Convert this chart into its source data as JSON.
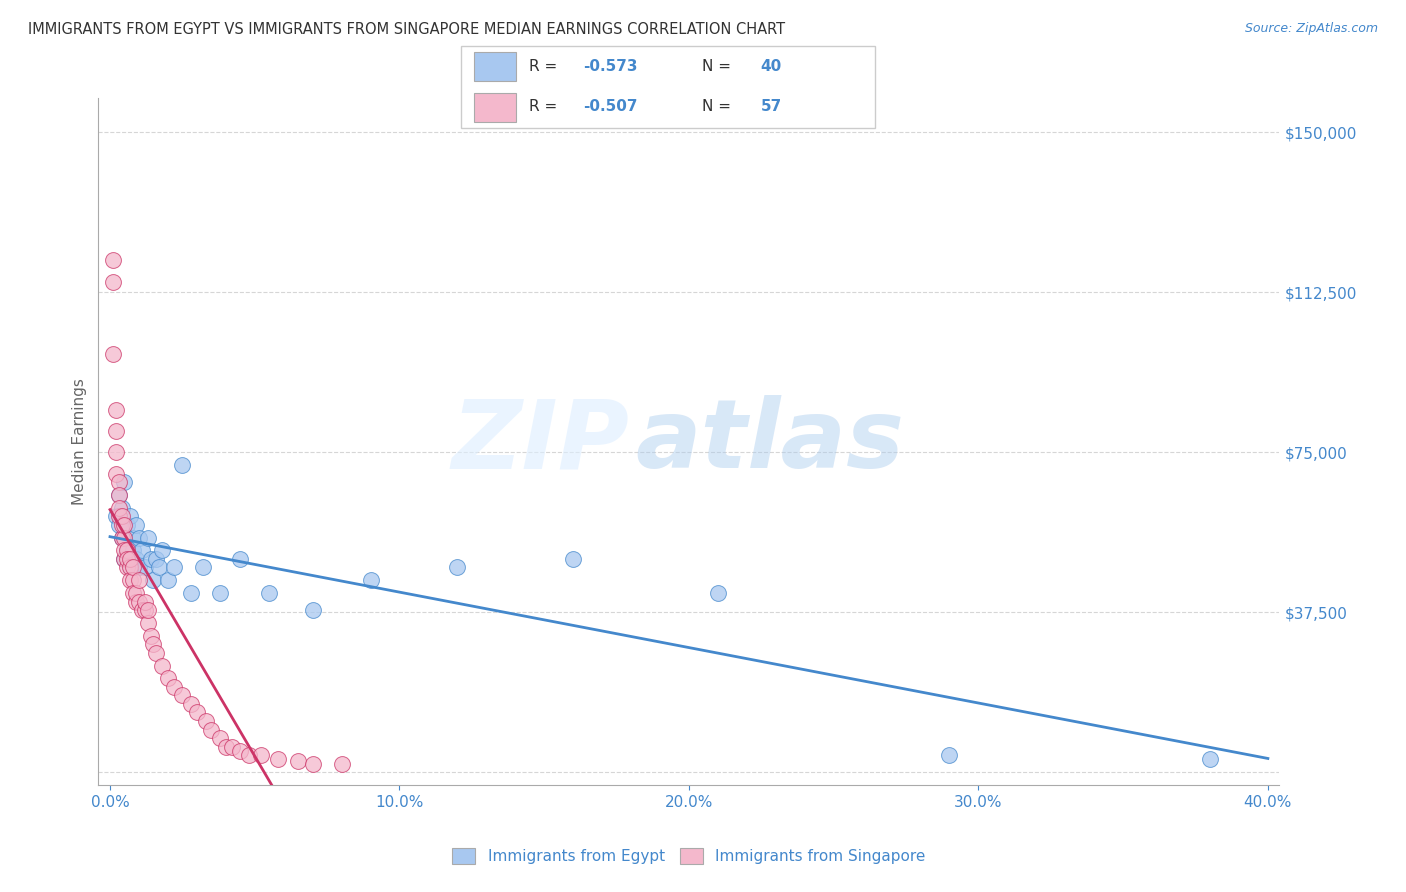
{
  "title": "IMMIGRANTS FROM EGYPT VS IMMIGRANTS FROM SINGAPORE MEDIAN EARNINGS CORRELATION CHART",
  "source": "Source: ZipAtlas.com",
  "ylabel_label": "Median Earnings",
  "legend_R_egypt": "-0.573",
  "legend_N_egypt": "40",
  "legend_R_singapore": "-0.507",
  "legend_N_singapore": "57",
  "legend_label_egypt": "Immigrants from Egypt",
  "legend_label_singapore": "Immigrants from Singapore",
  "color_egypt": "#a8c8f0",
  "color_singapore": "#f4b8cc",
  "color_egypt_line": "#4488cc",
  "color_singapore_line": "#cc3366",
  "color_axis_labels": "#4488cc",
  "color_title": "#333333",
  "watermark_zip": "ZIP",
  "watermark_atlas": "atlas",
  "xlim": [
    0.0,
    0.4
  ],
  "ylim": [
    0,
    150000
  ],
  "xtick_vals": [
    0.0,
    0.1,
    0.2,
    0.3,
    0.4
  ],
  "xtick_labels": [
    "0.0%",
    "10.0%",
    "20.0%",
    "30.0%",
    "40.0%"
  ],
  "ytick_vals": [
    0,
    37500,
    75000,
    112500,
    150000
  ],
  "ytick_labels": [
    "",
    "$37,500",
    "$75,000",
    "$112,500",
    "$150,000"
  ],
  "egypt_x": [
    0.002,
    0.003,
    0.003,
    0.004,
    0.004,
    0.005,
    0.005,
    0.006,
    0.006,
    0.007,
    0.007,
    0.008,
    0.008,
    0.009,
    0.009,
    0.01,
    0.01,
    0.011,
    0.012,
    0.013,
    0.014,
    0.015,
    0.016,
    0.017,
    0.018,
    0.02,
    0.022,
    0.025,
    0.028,
    0.032,
    0.038,
    0.045,
    0.055,
    0.07,
    0.09,
    0.12,
    0.16,
    0.21,
    0.29,
    0.38
  ],
  "egypt_y": [
    60000,
    58000,
    65000,
    55000,
    62000,
    50000,
    68000,
    52000,
    58000,
    48000,
    60000,
    55000,
    52000,
    50000,
    58000,
    48000,
    55000,
    52000,
    48000,
    55000,
    50000,
    45000,
    50000,
    48000,
    52000,
    45000,
    48000,
    72000,
    42000,
    48000,
    42000,
    50000,
    42000,
    38000,
    45000,
    48000,
    50000,
    42000,
    4000,
    3000
  ],
  "singapore_x": [
    0.001,
    0.001,
    0.001,
    0.002,
    0.002,
    0.002,
    0.002,
    0.003,
    0.003,
    0.003,
    0.003,
    0.004,
    0.004,
    0.004,
    0.005,
    0.005,
    0.005,
    0.005,
    0.006,
    0.006,
    0.006,
    0.007,
    0.007,
    0.007,
    0.008,
    0.008,
    0.008,
    0.009,
    0.009,
    0.01,
    0.01,
    0.011,
    0.012,
    0.012,
    0.013,
    0.013,
    0.014,
    0.015,
    0.016,
    0.018,
    0.02,
    0.022,
    0.025,
    0.028,
    0.03,
    0.033,
    0.035,
    0.038,
    0.04,
    0.042,
    0.045,
    0.048,
    0.052,
    0.058,
    0.065,
    0.07,
    0.08
  ],
  "singapore_y": [
    120000,
    98000,
    115000,
    80000,
    75000,
    85000,
    70000,
    68000,
    65000,
    60000,
    62000,
    55000,
    58000,
    60000,
    55000,
    50000,
    52000,
    58000,
    48000,
    52000,
    50000,
    48000,
    45000,
    50000,
    45000,
    42000,
    48000,
    40000,
    42000,
    40000,
    45000,
    38000,
    38000,
    40000,
    35000,
    38000,
    32000,
    30000,
    28000,
    25000,
    22000,
    20000,
    18000,
    16000,
    14000,
    12000,
    10000,
    8000,
    6000,
    6000,
    5000,
    4000,
    4000,
    3000,
    2500,
    2000,
    2000
  ]
}
